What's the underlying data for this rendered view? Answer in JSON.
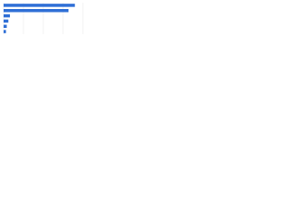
{
  "chart_data": {
    "type": "bar",
    "orientation": "horizontal",
    "categories": [
      null,
      null,
      null,
      null,
      null,
      null
    ],
    "values": [
      90,
      82,
      8,
      6,
      4,
      3
    ],
    "color": "#2f6fd6",
    "xlim": [
      0,
      100
    ],
    "xticks": [
      0,
      25,
      50,
      75,
      100
    ],
    "grid": true
  }
}
